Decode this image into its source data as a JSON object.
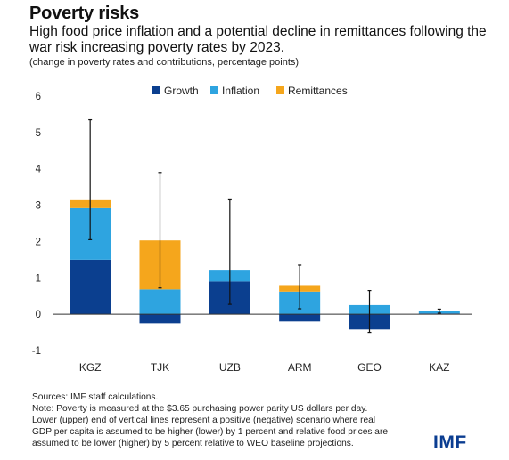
{
  "header": {
    "title": "Poverty risks",
    "subtitle": "High food price inflation and a potential decline in remittances following the war risk increasing poverty rates by 2023.",
    "unit_note": "(change in poverty rates and contributions, percentage points)"
  },
  "colors": {
    "growth": "#0b3f8f",
    "inflation": "#2ea4e0",
    "remittances": "#f5a61c",
    "axis": "#333333",
    "error_bar": "#111111",
    "logo": "#0b3d91"
  },
  "chart_data": {
    "type": "bar",
    "stacked": true,
    "categories": [
      "KGZ",
      "TJK",
      "UZB",
      "ARM",
      "GEO",
      "KAZ"
    ],
    "series": [
      {
        "name": "Growth",
        "values": [
          1.5,
          -0.25,
          0.9,
          -0.2,
          -0.42,
          0.02
        ]
      },
      {
        "name": "Inflation",
        "values": [
          1.42,
          0.68,
          0.3,
          0.62,
          0.25,
          0.06
        ]
      },
      {
        "name": "Remittances",
        "values": [
          0.22,
          1.35,
          0.0,
          0.18,
          0.0,
          0.0
        ]
      }
    ],
    "error_bars": [
      {
        "low": 2.05,
        "high": 5.35
      },
      {
        "low": 0.72,
        "high": 3.9
      },
      {
        "low": 0.27,
        "high": 3.15
      },
      {
        "low": 0.15,
        "high": 1.35
      },
      {
        "low": -0.5,
        "high": 0.65
      },
      {
        "low": 0.03,
        "high": 0.14
      }
    ],
    "y_ticks": [
      "-1",
      "0",
      "1",
      "2",
      "3",
      "4",
      "5",
      "6"
    ],
    "ylim": [
      -1,
      6
    ],
    "legend_position": "top-center",
    "grid": false
  },
  "footnotes": {
    "source": "Sources: IMF staff calculations.",
    "note_lines": [
      "Note: Poverty is measured at the $3.65 purchasing power parity US dollars per day.",
      "Lower (upper) end of vertical lines represent a positive (negative) scenario where real",
      "GDP per capita is assumed to be higher (lower) by 1 percent and relative food prices are",
      "assumed to be lower (higher) by 5 percent relative to WEO baseline projections."
    ]
  },
  "logo": {
    "text": "IMF"
  }
}
